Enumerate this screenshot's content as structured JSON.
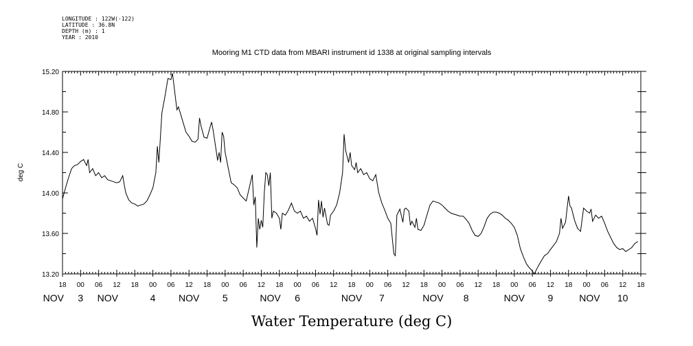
{
  "meta": {
    "longitude": "LONGITUDE : 122W(-122)",
    "latitude": "LATITUDE : 36.8N",
    "depth": "DEPTH (m) : 1",
    "year": "YEAR : 2010"
  },
  "chart_data": {
    "type": "line",
    "title": "Mooring M1 CTD data from MBARI instrument id 1338 at original sampling intervals",
    "xlabel": "Water Temperature (deg C)",
    "ylabel": "deg C",
    "ylim": [
      13.2,
      15.2
    ],
    "yticks": [
      "13.20",
      "13.60",
      "14.00",
      "14.40",
      "14.80",
      "15.20"
    ],
    "x_unit": "hours since 2010-11-02 18:00 (derived from tick positions)",
    "xlim": [
      0,
      192
    ],
    "hour_ticks": [
      "18",
      "00",
      "06",
      "12",
      "18",
      "00",
      "06",
      "12",
      "18",
      "00",
      "06",
      "12",
      "18",
      "00",
      "06",
      "12",
      "18",
      "00",
      "06",
      "12",
      "18",
      "00",
      "06",
      "12",
      "18",
      "00",
      "06",
      "12",
      "18",
      "00",
      "06",
      "12",
      "18"
    ],
    "day_labels": [
      {
        "label": "NOV",
        "hour": -3
      },
      {
        "label": "3",
        "hour": 6
      },
      {
        "label": "NOV",
        "hour": 15
      },
      {
        "label": "4",
        "hour": 30
      },
      {
        "label": "NOV",
        "hour": 42
      },
      {
        "label": "5",
        "hour": 54
      },
      {
        "label": "NOV",
        "hour": 69
      },
      {
        "label": "6",
        "hour": 78
      },
      {
        "label": "NOV",
        "hour": 96
      },
      {
        "label": "7",
        "hour": 106
      },
      {
        "label": "NOV",
        "hour": 123
      },
      {
        "label": "8",
        "hour": 134
      },
      {
        "label": "NOV",
        "hour": 150
      },
      {
        "label": "9",
        "hour": 162
      },
      {
        "label": "NOV",
        "hour": 175
      },
      {
        "label": "10",
        "hour": 186
      }
    ],
    "grid": false,
    "series": [
      {
        "color": "#000000",
        "points": [
          [
            0.0,
            13.94
          ],
          [
            1.0,
            14.05
          ],
          [
            2.0,
            14.15
          ],
          [
            3.0,
            14.24
          ],
          [
            4.0,
            14.27
          ],
          [
            5.0,
            14.28
          ],
          [
            6.0,
            14.31
          ],
          [
            7.0,
            14.33
          ],
          [
            8.0,
            14.27
          ],
          [
            8.5,
            14.33
          ],
          [
            9.0,
            14.2
          ],
          [
            10.0,
            14.24
          ],
          [
            11.0,
            14.17
          ],
          [
            12.0,
            14.2
          ],
          [
            13.0,
            14.15
          ],
          [
            14.0,
            14.17
          ],
          [
            15.0,
            14.13
          ],
          [
            16.0,
            14.12
          ],
          [
            17.0,
            14.11
          ],
          [
            18.0,
            14.1
          ],
          [
            19.0,
            14.11
          ],
          [
            20.0,
            14.17
          ],
          [
            20.5,
            14.08
          ],
          [
            21.0,
            14.0
          ],
          [
            22.0,
            13.93
          ],
          [
            23.0,
            13.9
          ],
          [
            24.0,
            13.89
          ],
          [
            25.0,
            13.87
          ],
          [
            26.0,
            13.88
          ],
          [
            27.0,
            13.89
          ],
          [
            28.0,
            13.92
          ],
          [
            29.0,
            13.98
          ],
          [
            30.0,
            14.05
          ],
          [
            31.0,
            14.2
          ],
          [
            31.5,
            14.46
          ],
          [
            32.0,
            14.3
          ],
          [
            33.0,
            14.79
          ],
          [
            34.0,
            14.95
          ],
          [
            35.0,
            15.13
          ],
          [
            36.0,
            15.12
          ],
          [
            36.5,
            15.18
          ],
          [
            37.0,
            15.06
          ],
          [
            38.0,
            14.82
          ],
          [
            38.5,
            14.85
          ],
          [
            39.0,
            14.8
          ],
          [
            40.0,
            14.7
          ],
          [
            41.0,
            14.6
          ],
          [
            42.0,
            14.56
          ],
          [
            43.0,
            14.51
          ],
          [
            44.0,
            14.5
          ],
          [
            45.0,
            14.53
          ],
          [
            45.5,
            14.74
          ],
          [
            46.0,
            14.66
          ],
          [
            47.0,
            14.55
          ],
          [
            48.0,
            14.54
          ],
          [
            49.0,
            14.65
          ],
          [
            49.5,
            14.7
          ],
          [
            50.0,
            14.62
          ],
          [
            51.0,
            14.42
          ],
          [
            51.5,
            14.32
          ],
          [
            52.0,
            14.4
          ],
          [
            52.5,
            14.3
          ],
          [
            53.0,
            14.6
          ],
          [
            53.5,
            14.56
          ],
          [
            54.0,
            14.4
          ],
          [
            55.0,
            14.25
          ],
          [
            56.0,
            14.1
          ],
          [
            57.0,
            14.08
          ],
          [
            58.0,
            14.05
          ],
          [
            59.0,
            13.98
          ],
          [
            60.0,
            13.95
          ],
          [
            61.0,
            13.92
          ],
          [
            62.0,
            14.05
          ],
          [
            63.0,
            14.18
          ],
          [
            63.5,
            13.88
          ],
          [
            64.0,
            13.96
          ],
          [
            64.5,
            13.46
          ],
          [
            65.0,
            13.75
          ],
          [
            65.5,
            13.64
          ],
          [
            66.0,
            13.73
          ],
          [
            66.5,
            13.66
          ],
          [
            67.0,
            14.0
          ],
          [
            67.5,
            14.2
          ],
          [
            68.0,
            14.18
          ],
          [
            68.5,
            14.07
          ],
          [
            69.0,
            14.2
          ],
          [
            69.5,
            13.75
          ],
          [
            70.0,
            13.82
          ],
          [
            71.0,
            13.8
          ],
          [
            72.0,
            13.75
          ],
          [
            72.5,
            13.64
          ],
          [
            73.0,
            13.8
          ],
          [
            74.0,
            13.78
          ],
          [
            75.0,
            13.83
          ],
          [
            76.0,
            13.9
          ],
          [
            77.0,
            13.82
          ],
          [
            78.0,
            13.8
          ],
          [
            79.0,
            13.82
          ],
          [
            80.0,
            13.75
          ],
          [
            81.0,
            13.77
          ],
          [
            82.0,
            13.72
          ],
          [
            83.0,
            13.75
          ],
          [
            84.0,
            13.65
          ],
          [
            84.5,
            13.58
          ],
          [
            85.0,
            13.93
          ],
          [
            85.5,
            13.79
          ],
          [
            86.0,
            13.92
          ],
          [
            86.5,
            13.76
          ],
          [
            87.0,
            13.85
          ],
          [
            88.0,
            13.69
          ],
          [
            88.5,
            13.68
          ],
          [
            89.0,
            13.78
          ],
          [
            90.0,
            13.82
          ],
          [
            91.0,
            13.88
          ],
          [
            92.0,
            14.0
          ],
          [
            93.0,
            14.2
          ],
          [
            93.5,
            14.58
          ],
          [
            94.0,
            14.42
          ],
          [
            95.0,
            14.3
          ],
          [
            95.5,
            14.4
          ],
          [
            96.0,
            14.27
          ],
          [
            97.0,
            14.23
          ],
          [
            97.5,
            14.3
          ],
          [
            98.0,
            14.2
          ],
          [
            99.0,
            14.24
          ],
          [
            100.0,
            14.18
          ],
          [
            101.0,
            14.2
          ],
          [
            102.0,
            14.14
          ],
          [
            103.0,
            14.12
          ],
          [
            104.0,
            14.18
          ],
          [
            105.0,
            14.0
          ],
          [
            106.0,
            13.9
          ],
          [
            107.0,
            13.83
          ],
          [
            108.0,
            13.75
          ],
          [
            109.0,
            13.7
          ],
          [
            110.0,
            13.4
          ],
          [
            110.5,
            13.38
          ],
          [
            111.0,
            13.78
          ],
          [
            112.0,
            13.84
          ],
          [
            113.0,
            13.71
          ],
          [
            113.5,
            13.84
          ],
          [
            114.0,
            13.85
          ],
          [
            115.0,
            13.82
          ],
          [
            115.5,
            13.68
          ],
          [
            116.0,
            13.72
          ],
          [
            117.0,
            13.66
          ],
          [
            117.5,
            13.75
          ],
          [
            118.0,
            13.64
          ],
          [
            119.0,
            13.63
          ],
          [
            120.0,
            13.68
          ],
          [
            121.0,
            13.78
          ],
          [
            122.0,
            13.88
          ],
          [
            123.0,
            13.92
          ],
          [
            124.0,
            13.91
          ],
          [
            125.0,
            13.9
          ],
          [
            126.0,
            13.88
          ],
          [
            127.0,
            13.85
          ],
          [
            128.0,
            13.82
          ],
          [
            129.0,
            13.8
          ],
          [
            130.0,
            13.79
          ],
          [
            131.0,
            13.78
          ],
          [
            132.0,
            13.77
          ],
          [
            133.0,
            13.77
          ],
          [
            134.0,
            13.74
          ],
          [
            135.0,
            13.7
          ],
          [
            136.0,
            13.63
          ],
          [
            137.0,
            13.58
          ],
          [
            138.0,
            13.57
          ],
          [
            139.0,
            13.6
          ],
          [
            140.0,
            13.67
          ],
          [
            141.0,
            13.75
          ],
          [
            142.0,
            13.79
          ],
          [
            143.0,
            13.81
          ],
          [
            144.0,
            13.81
          ],
          [
            145.0,
            13.8
          ],
          [
            146.0,
            13.78
          ],
          [
            147.0,
            13.75
          ],
          [
            148.0,
            13.73
          ],
          [
            149.0,
            13.7
          ],
          [
            150.0,
            13.66
          ],
          [
            151.0,
            13.58
          ],
          [
            152.0,
            13.45
          ],
          [
            153.0,
            13.37
          ],
          [
            154.0,
            13.3
          ],
          [
            155.0,
            13.26
          ],
          [
            156.0,
            13.23
          ],
          [
            156.5,
            13.2
          ],
          [
            157.0,
            13.22
          ],
          [
            158.0,
            13.28
          ],
          [
            159.0,
            13.33
          ],
          [
            160.0,
            13.38
          ],
          [
            161.0,
            13.4
          ],
          [
            162.0,
            13.44
          ],
          [
            163.0,
            13.48
          ],
          [
            164.0,
            13.52
          ],
          [
            165.0,
            13.6
          ],
          [
            165.5,
            13.75
          ],
          [
            166.0,
            13.65
          ],
          [
            167.0,
            13.71
          ],
          [
            168.0,
            13.97
          ],
          [
            168.5,
            13.87
          ],
          [
            169.0,
            13.85
          ],
          [
            170.0,
            13.73
          ],
          [
            171.0,
            13.65
          ],
          [
            172.0,
            13.62
          ],
          [
            173.0,
            13.85
          ],
          [
            174.0,
            13.82
          ],
          [
            175.0,
            13.8
          ],
          [
            175.5,
            13.84
          ],
          [
            176.0,
            13.72
          ],
          [
            177.0,
            13.78
          ],
          [
            178.0,
            13.75
          ],
          [
            179.0,
            13.77
          ],
          [
            180.0,
            13.7
          ],
          [
            181.0,
            13.62
          ],
          [
            182.0,
            13.56
          ],
          [
            183.0,
            13.5
          ],
          [
            184.0,
            13.46
          ],
          [
            185.0,
            13.44
          ],
          [
            186.0,
            13.45
          ],
          [
            187.0,
            13.42
          ],
          [
            188.0,
            13.44
          ],
          [
            189.0,
            13.46
          ],
          [
            190.0,
            13.5
          ],
          [
            191.0,
            13.52
          ]
        ]
      }
    ]
  }
}
